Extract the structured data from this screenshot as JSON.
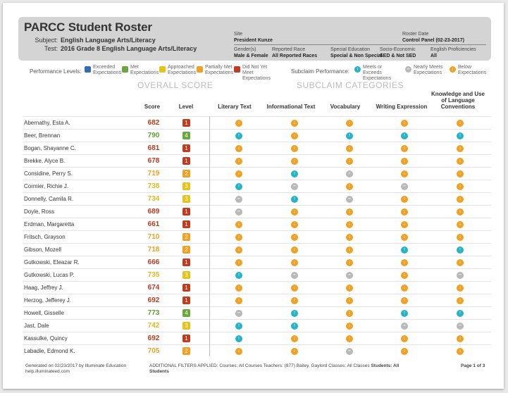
{
  "header": {
    "title": "PARCC Student Roster",
    "subject_label": "Subject:",
    "subject_value": "English Language Arts/Literacy",
    "test_label": "Test:",
    "test_value": "2016 Grade 8 English Language Arts/Literacy",
    "site_label": "Site",
    "site_value": "President Kunze",
    "roster_date_label": "Roster Date",
    "roster_date_value": "Control Panel (02-23-2017)",
    "gender_label": "Gender(s)",
    "gender_value": "Male & Female",
    "race_label": "Reported Race",
    "race_value": "All Reported Races",
    "sped_label": "Special Education",
    "sped_value": "Special & Non Special",
    "socio_label": "Socio-Economic",
    "socio_value": "SED & Not SED",
    "elp_label": "English Proficiencies",
    "elp_value": "All"
  },
  "legend": {
    "performance_title": "Performance Levels:",
    "levels": [
      {
        "label": "Exceeded Expectations",
        "color": "#2f6fb5"
      },
      {
        "label": "Met Expectations",
        "color": "#6aa83d"
      },
      {
        "label": "Approached Expectations",
        "color": "#e5c317"
      },
      {
        "label": "Partially Met Expectations",
        "color": "#f0a022"
      },
      {
        "label": "Did Not Yet Meet Expectations",
        "color": "#c23b1e"
      }
    ],
    "subclaim_title": "Subclaim Performance:",
    "subclaims": [
      {
        "label": "Meets or Exceeds Expectations",
        "color": "#26b3c7"
      },
      {
        "label": "Nearly Meets Expectations",
        "color": "#b8b8b8"
      },
      {
        "label": "Below Expectations",
        "color": "#f0a022"
      }
    ]
  },
  "sections": {
    "overall": "OVERALL SCORE",
    "subclaim": "SUBCLAIM CATEGORIES"
  },
  "columns": {
    "score": "Score",
    "level": "Level",
    "literary": "Literary Text",
    "informational": "Informational Text",
    "vocabulary": "Vocabulary",
    "writing": "Writing Expression",
    "knowledge": "Knowledge and Use of Language Conventions"
  },
  "students": [
    {
      "name": "Abernathy, Esta A.",
      "score": "682",
      "level": "1",
      "sub": [
        "below",
        "below",
        "below",
        "below",
        "below"
      ]
    },
    {
      "name": "Beer, Brennan",
      "score": "790",
      "level": "4",
      "sub": [
        "meets",
        "below",
        "meets",
        "meets",
        "meets"
      ]
    },
    {
      "name": "Bogan, Shayanne C.",
      "score": "681",
      "level": "1",
      "sub": [
        "below",
        "below",
        "below",
        "below",
        "below"
      ]
    },
    {
      "name": "Brekke, Alyce B.",
      "score": "678",
      "level": "1",
      "sub": [
        "below",
        "below",
        "below",
        "below",
        "below"
      ]
    },
    {
      "name": "Considine, Perry S.",
      "score": "719",
      "level": "2",
      "sub": [
        "below",
        "meets",
        "nearly",
        "below",
        "below"
      ]
    },
    {
      "name": "Cormier, Richie J.",
      "score": "738",
      "level": "3",
      "sub": [
        "meets",
        "nearly",
        "below",
        "nearly",
        "below"
      ]
    },
    {
      "name": "Donnelly, Camila R.",
      "score": "734",
      "level": "3",
      "sub": [
        "nearly",
        "meets",
        "nearly",
        "below",
        "below"
      ]
    },
    {
      "name": "Doyle, Ross",
      "score": "689",
      "level": "1",
      "sub": [
        "nearly",
        "below",
        "below",
        "below",
        "below"
      ]
    },
    {
      "name": "Erdman, Margaretta",
      "score": "661",
      "level": "1",
      "sub": [
        "below",
        "below",
        "below",
        "below",
        "below"
      ]
    },
    {
      "name": "Fritsch, Grayson",
      "score": "710",
      "level": "2",
      "sub": [
        "below",
        "below",
        "below",
        "below",
        "below"
      ]
    },
    {
      "name": "Gibson, Mozell",
      "score": "718",
      "level": "2",
      "sub": [
        "below",
        "below",
        "below",
        "meets",
        "meets"
      ]
    },
    {
      "name": "Gutkowski, Eleazar R.",
      "score": "666",
      "level": "1",
      "sub": [
        "below",
        "below",
        "below",
        "below",
        "below"
      ]
    },
    {
      "name": "Gutkowski, Lucas P.",
      "score": "735",
      "level": "3",
      "sub": [
        "meets",
        "nearly",
        "nearly",
        "below",
        "nearly"
      ]
    },
    {
      "name": "Haag, Jeffrey J.",
      "score": "674",
      "level": "1",
      "sub": [
        "below",
        "below",
        "below",
        "below",
        "below"
      ]
    },
    {
      "name": "Herzog, Jefferey J.",
      "score": "692",
      "level": "1",
      "sub": [
        "below",
        "below",
        "below",
        "below",
        "below"
      ]
    },
    {
      "name": "Howell, Gisselle",
      "score": "773",
      "level": "4",
      "sub": [
        "nearly",
        "meets",
        "below",
        "meets",
        "meets"
      ]
    },
    {
      "name": "Jast, Dale",
      "score": "742",
      "level": "3",
      "sub": [
        "meets",
        "meets",
        "below",
        "nearly",
        "nearly"
      ]
    },
    {
      "name": "Kassulke, Quincy",
      "score": "692",
      "level": "1",
      "sub": [
        "meets",
        "below",
        "below",
        "below",
        "below"
      ]
    },
    {
      "name": "Labadie, Edmond K.",
      "score": "705",
      "level": "2",
      "sub": [
        "below",
        "below",
        "nearly",
        "below",
        "below"
      ]
    }
  ],
  "level_colors": {
    "1": "#c23b1e",
    "2": "#f0a022",
    "3": "#e5c317",
    "4": "#6aa83d",
    "5": "#2f6fb5"
  },
  "score_colors": {
    "1": "#b83a1e",
    "2": "#f0a022",
    "3": "#e0b81a",
    "4": "#5f9b34",
    "5": "#2f6fb5"
  },
  "subclaim_colors": {
    "meets": "#26b3c7",
    "nearly": "#b8b8b8",
    "below": "#f0a022"
  },
  "subclaim_icons": {
    "meets": "up-arrow-icon",
    "nearly": "dash-icon",
    "below": "down-arrow-icon"
  },
  "footer": {
    "generated": "Generated on 02/23/2017 by Illuminate Education",
    "url": "help.illuminateed.com",
    "filters_label": "ADDITIONAL FILTERS APPLIED:",
    "filters_courses": "Courses: All Courses",
    "filters_teachers": "Teachers: (877) Bailey, Gaylord",
    "filters_classes": "Classes: All Classes",
    "filters_students": "Students: All Students",
    "page": "Page 1 of 3"
  }
}
